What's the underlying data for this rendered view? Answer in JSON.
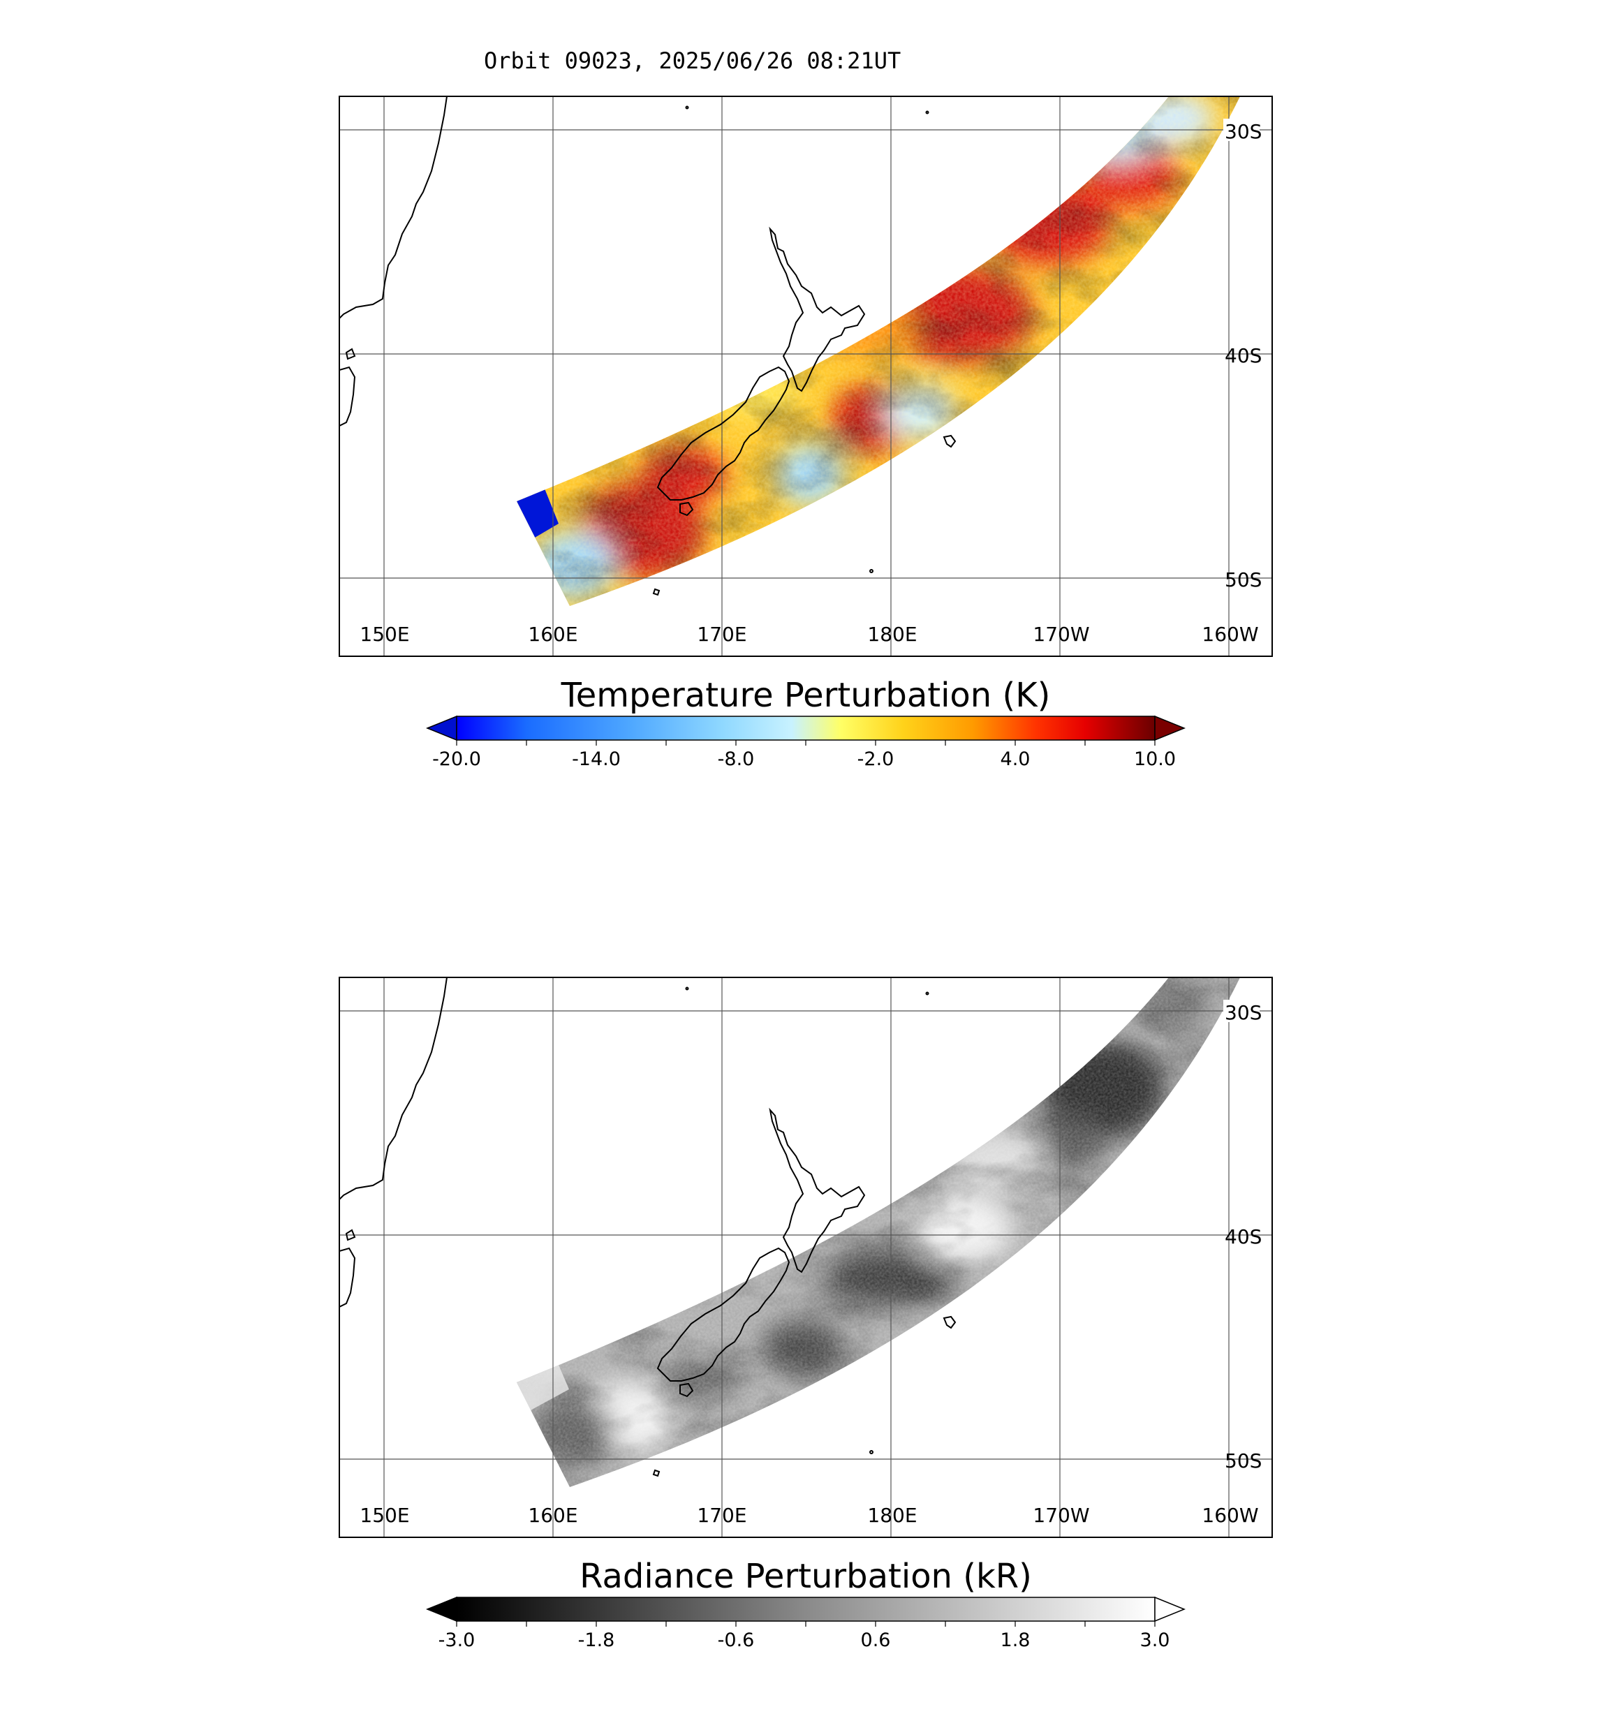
{
  "title": "Orbit 09023, 2025/06/26 08:21UT",
  "longitude_labels": [
    "150E",
    "160E",
    "170E",
    "180E",
    "170W",
    "160W"
  ],
  "latitude_labels": [
    "30S",
    "40S",
    "50S"
  ],
  "panels": [
    {
      "id": "temperature",
      "colorbar": {
        "title": "Temperature Perturbation (K)",
        "ticks": [
          "-20.0",
          "-14.0",
          "-8.0",
          "-2.0",
          "4.0",
          "10.0"
        ],
        "min": -20.0,
        "max": 10.0,
        "colors": [
          "#0000ff",
          "#1a6cff",
          "#4fa8ff",
          "#8fd8ff",
          "#c8f2ff",
          "#ffff66",
          "#ffd21a",
          "#ff9a00",
          "#ff4a00",
          "#e60000",
          "#a80000",
          "#6a0000"
        ],
        "under_color": "#0010d0",
        "over_color": "#7a0000"
      }
    },
    {
      "id": "radiance",
      "colorbar": {
        "title": "Radiance Perturbation (kR)",
        "ticks": [
          "-3.0",
          "-1.8",
          "-0.6",
          "0.6",
          "1.8",
          "3.0"
        ],
        "min": -3.0,
        "max": 3.0,
        "colors": [
          "#000000",
          "#3a3a3a",
          "#707070",
          "#a0a0a0",
          "#cfcfcf",
          "#f6f6f6"
        ],
        "under_color": "#000000",
        "over_color": "#ffffff"
      }
    }
  ]
}
